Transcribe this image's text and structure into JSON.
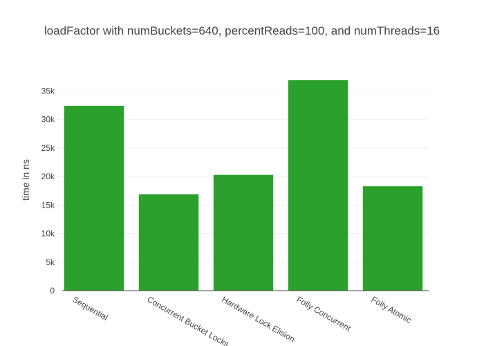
{
  "chart_data": {
    "type": "bar",
    "title": "loadFactor with numBuckets=640, percentReads=100, and numThreads=16",
    "xlabel": "",
    "ylabel": "time in ns",
    "categories": [
      "Sequential",
      "Concurrent Bucket Locks",
      "Hardware Lock Elision",
      "Folly Concurrent",
      "Folly Atomic"
    ],
    "values": [
      32400,
      16900,
      20300,
      36900,
      18300
    ],
    "ylim": [
      0,
      37000
    ],
    "yticks": [
      0,
      5000,
      10000,
      15000,
      20000,
      25000,
      30000,
      35000
    ],
    "ytick_labels": [
      "0",
      "5k",
      "10k",
      "15k",
      "20k",
      "25k",
      "30k",
      "35k"
    ],
    "bar_color": "#2ca02c",
    "grid": true,
    "legend": "none"
  }
}
